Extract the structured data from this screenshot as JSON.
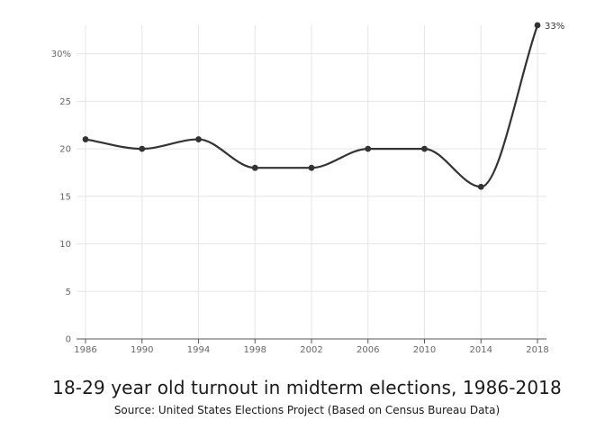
{
  "chart_data": {
    "type": "line",
    "title": "18-29 year old turnout in midterm elections, 1986-2018",
    "subtitle": "Source: United States Elections Project (Based on Census Bureau Data)",
    "categories": [
      "1986",
      "1990",
      "1994",
      "1998",
      "2002",
      "2006",
      "2010",
      "2014",
      "2018"
    ],
    "series": [
      {
        "values": [
          21,
          20,
          21,
          18,
          18,
          20,
          20,
          16,
          33
        ]
      }
    ],
    "y_ticks": [
      "0",
      "5",
      "10",
      "15",
      "20",
      "25",
      "30%"
    ],
    "ylim": [
      0,
      33
    ],
    "annotation": {
      "category": "2018",
      "text": "33%"
    },
    "grid": true,
    "line_color": "#333333",
    "grid_color": "#e5e5e5"
  }
}
